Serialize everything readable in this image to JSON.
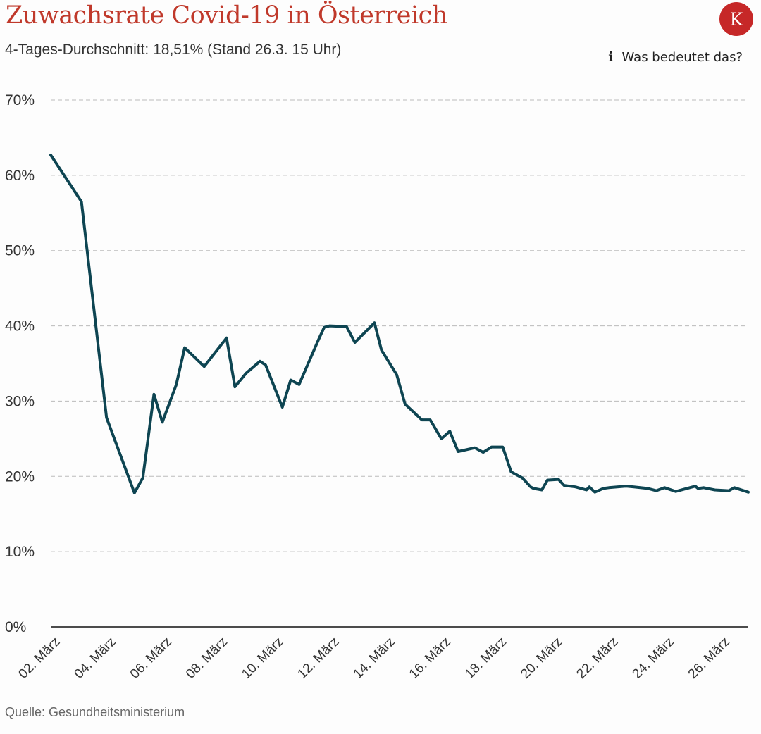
{
  "header": {
    "title": "Zuwachsrate Covid-19 in Österreich",
    "subtitle": "4-Tages-Durchschnitt: 18,51% (Stand 26.3. 15 Uhr)",
    "logo_letter": "K",
    "info_icon": "info-icon",
    "info_label": "Was bedeutet das?"
  },
  "colors": {
    "title": "#c0392b",
    "line": "#0e4552",
    "logo": "#c62828",
    "grid": "#bbbbbb"
  },
  "chart_data": {
    "type": "line",
    "x_unit": "day of March",
    "ylim": [
      0,
      70
    ],
    "y_ticks": [
      0,
      10,
      20,
      30,
      40,
      50,
      60,
      70
    ],
    "y_tick_labels": [
      "0%",
      "10%",
      "20%",
      "30%",
      "40%",
      "50%",
      "60%",
      "70%"
    ],
    "x_ticks": [
      2,
      4,
      6,
      8,
      10,
      12,
      14,
      16,
      18,
      20,
      22,
      24,
      26
    ],
    "x_tick_labels": [
      "02. März",
      "04. März",
      "06. März",
      "08. März",
      "10. März",
      "12. März",
      "14. März",
      "16. März",
      "18. März",
      "20. März",
      "22. März",
      "24. März",
      "26. März"
    ],
    "grid": true,
    "series": [
      {
        "x": [
          2,
          3.1,
          4.0,
          5.0,
          5.3,
          5.7,
          6.0,
          6.5,
          6.8,
          7.5,
          8.3,
          8.6,
          9.0,
          9.5,
          9.7,
          10.3,
          10.6,
          10.9,
          11.6,
          11.8,
          12.0,
          12.6,
          12.9,
          13.6,
          13.85,
          14.4,
          14.7,
          15.3,
          15.6,
          16.0,
          16.3,
          16.6,
          17.2,
          17.5,
          17.8,
          18.2,
          18.5,
          18.9,
          19.2,
          19.3,
          19.6,
          19.8,
          20.2,
          20.4,
          20.8,
          21.2,
          21.3,
          21.5,
          21.8,
          22.0,
          22.6,
          22.9,
          23.4,
          23.7,
          24.0,
          24.4,
          25.1,
          25.2,
          25.4,
          25.8,
          26.3,
          26.5,
          27.0
        ],
        "values": [
          62.7,
          56.5,
          27.8,
          17.8,
          19.8,
          30.9,
          27.2,
          32.2,
          37.1,
          34.6,
          38.4,
          31.9,
          33.7,
          35.3,
          34.8,
          29.2,
          32.8,
          32.2,
          38.2,
          39.8,
          40.0,
          39.9,
          37.8,
          40.4,
          36.8,
          33.5,
          29.6,
          27.5,
          27.5,
          25.0,
          26.0,
          23.3,
          23.8,
          23.2,
          23.9,
          23.9,
          20.6,
          19.8,
          18.6,
          18.4,
          18.2,
          19.5,
          19.6,
          18.8,
          18.6,
          18.2,
          18.6,
          17.9,
          18.4,
          18.5,
          18.7,
          18.6,
          18.4,
          18.1,
          18.5,
          18.0,
          18.7,
          18.4,
          18.5,
          18.2,
          18.1,
          18.5,
          17.9
        ]
      }
    ]
  },
  "footer": {
    "source": "Quelle: Gesundheitsministerium"
  }
}
